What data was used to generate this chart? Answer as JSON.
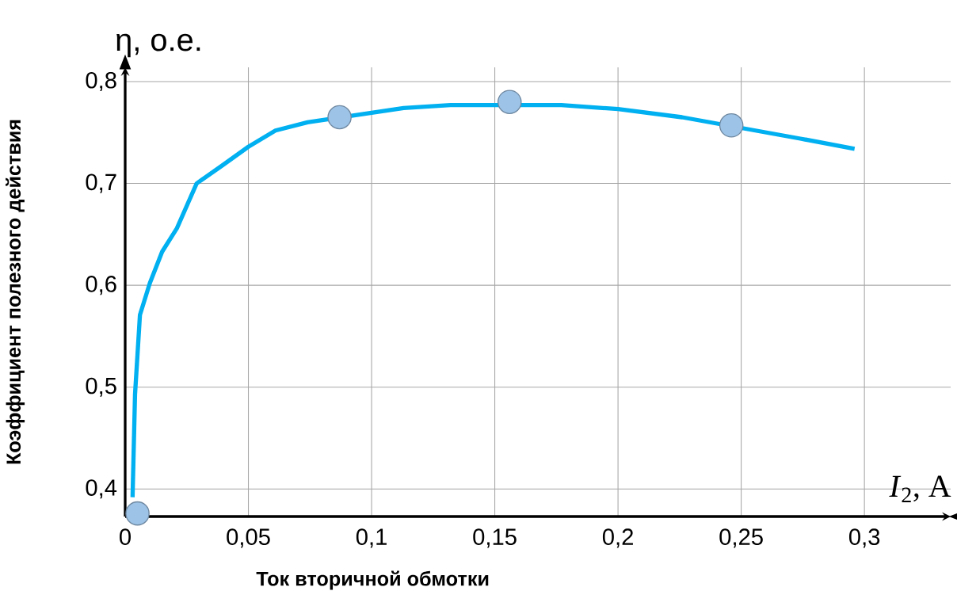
{
  "chart_data": {
    "type": "line",
    "xlabel": "Ток вторичной обмотки",
    "ylabel": "Коэффициент полезного действия",
    "annotations": [
      "η, о.е.",
      "*I*$_{2}$, A"
    ],
    "series": [
      {
        "color": "#00b0f0",
        "marker": "none",
        "x": [
          0.003,
          0.004,
          0.006,
          0.01,
          0.015,
          0.021,
          0.029,
          0.039,
          0.05,
          0.061,
          0.074,
          0.113,
          0.132,
          0.177,
          0.2,
          0.226,
          0.274,
          0.296
        ],
        "values": [
          0.392,
          0.493,
          0.571,
          0.602,
          0.633,
          0.656,
          0.7,
          0.717,
          0.736,
          0.752,
          0.76,
          0.774,
          0.777,
          0.777,
          0.773,
          0.765,
          0.744,
          0.734
        ]
      },
      {
        "type": "scatter",
        "color": "#9dc3e6",
        "marker": "circle",
        "x": [
          0.005,
          0.087,
          0.156,
          0.246
        ],
        "values": [
          0.376,
          0.765,
          0.78,
          0.757
        ]
      }
    ],
    "xlim": [
      0,
      0.335
    ],
    "ylim": [
      0.373,
      0.814
    ],
    "xticks": [
      0,
      {
        "value": 0.05,
        "label": "0,05"
      },
      {
        "value": 0.1,
        "label": "0,1"
      },
      {
        "value": 0.15,
        "label": "0,15"
      },
      {
        "value": 0.2,
        "label": "0,2"
      },
      {
        "value": 0.25,
        "label": "0,25"
      },
      {
        "value": 0.3,
        "label": "0,3"
      }
    ],
    "yticks": [
      {
        "value": 0.4,
        "label": "0,4"
      },
      {
        "value": 0.5,
        "label": "0,5"
      },
      {
        "value": 0.6,
        "label": "0,6"
      },
      {
        "value": 0.7,
        "label": "0,7"
      },
      {
        "value": 0.8,
        "label": "0,8"
      }
    ],
    "grid": true
  }
}
